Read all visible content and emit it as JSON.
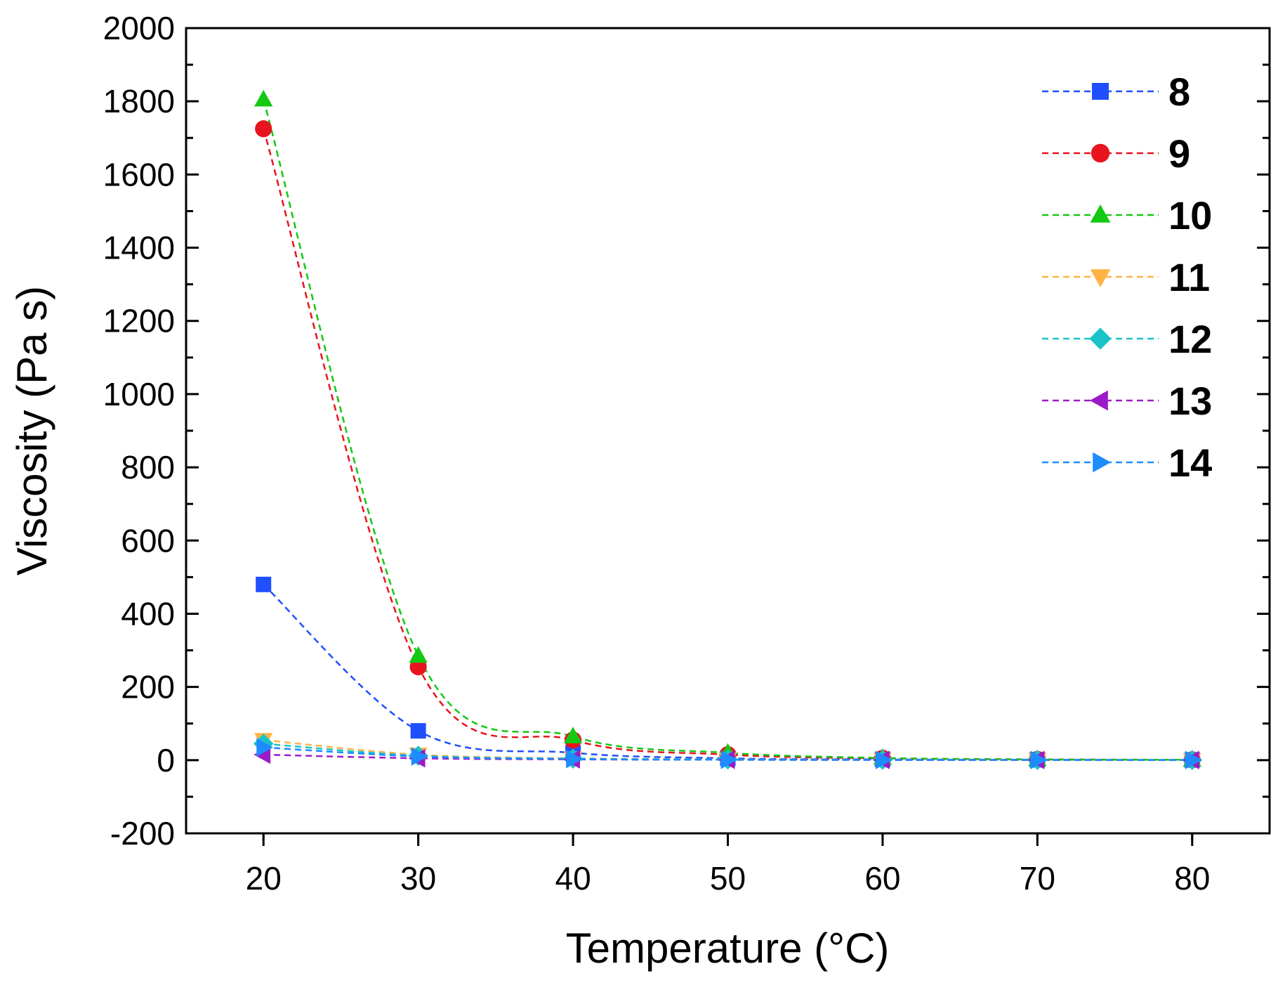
{
  "chart_data": {
    "type": "line",
    "title": "",
    "xlabel": "Temperature (°C)",
    "ylabel": "Viscosity (Pa s)",
    "xlim": [
      15,
      85
    ],
    "ylim": [
      -200,
      2000
    ],
    "xticks": [
      20,
      30,
      40,
      50,
      60,
      70,
      80
    ],
    "yticks": [
      -200,
      0,
      200,
      400,
      600,
      800,
      1000,
      1200,
      1400,
      1600,
      1800,
      2000
    ],
    "legend_position": "top-right",
    "x": [
      20,
      30,
      40,
      50,
      60,
      70,
      80
    ],
    "series": [
      {
        "name": "8",
        "color": "#1f4fff",
        "marker": "square",
        "values": [
          480,
          80,
          20,
          5,
          2,
          1,
          0.5
        ]
      },
      {
        "name": "9",
        "color": "#e8141e",
        "marker": "circle",
        "values": [
          1725,
          255,
          55,
          15,
          5,
          2,
          1
        ]
      },
      {
        "name": "10",
        "color": "#14c814",
        "marker": "triangle-up",
        "values": [
          1805,
          285,
          65,
          20,
          6,
          2,
          1
        ]
      },
      {
        "name": "11",
        "color": "#ffb347",
        "marker": "triangle-down",
        "values": [
          55,
          15,
          5,
          2,
          1,
          0.5,
          0.3
        ]
      },
      {
        "name": "12",
        "color": "#19c3c8",
        "marker": "diamond",
        "values": [
          45,
          12,
          4,
          2,
          1,
          0.5,
          0.3
        ]
      },
      {
        "name": "13",
        "color": "#9b1bc8",
        "marker": "triangle-left",
        "values": [
          15,
          5,
          2,
          1,
          0.5,
          0.3,
          0.2
        ]
      },
      {
        "name": "14",
        "color": "#1e8cff",
        "marker": "triangle-right",
        "values": [
          35,
          10,
          3,
          1,
          0.5,
          0.3,
          0.2
        ]
      }
    ]
  }
}
